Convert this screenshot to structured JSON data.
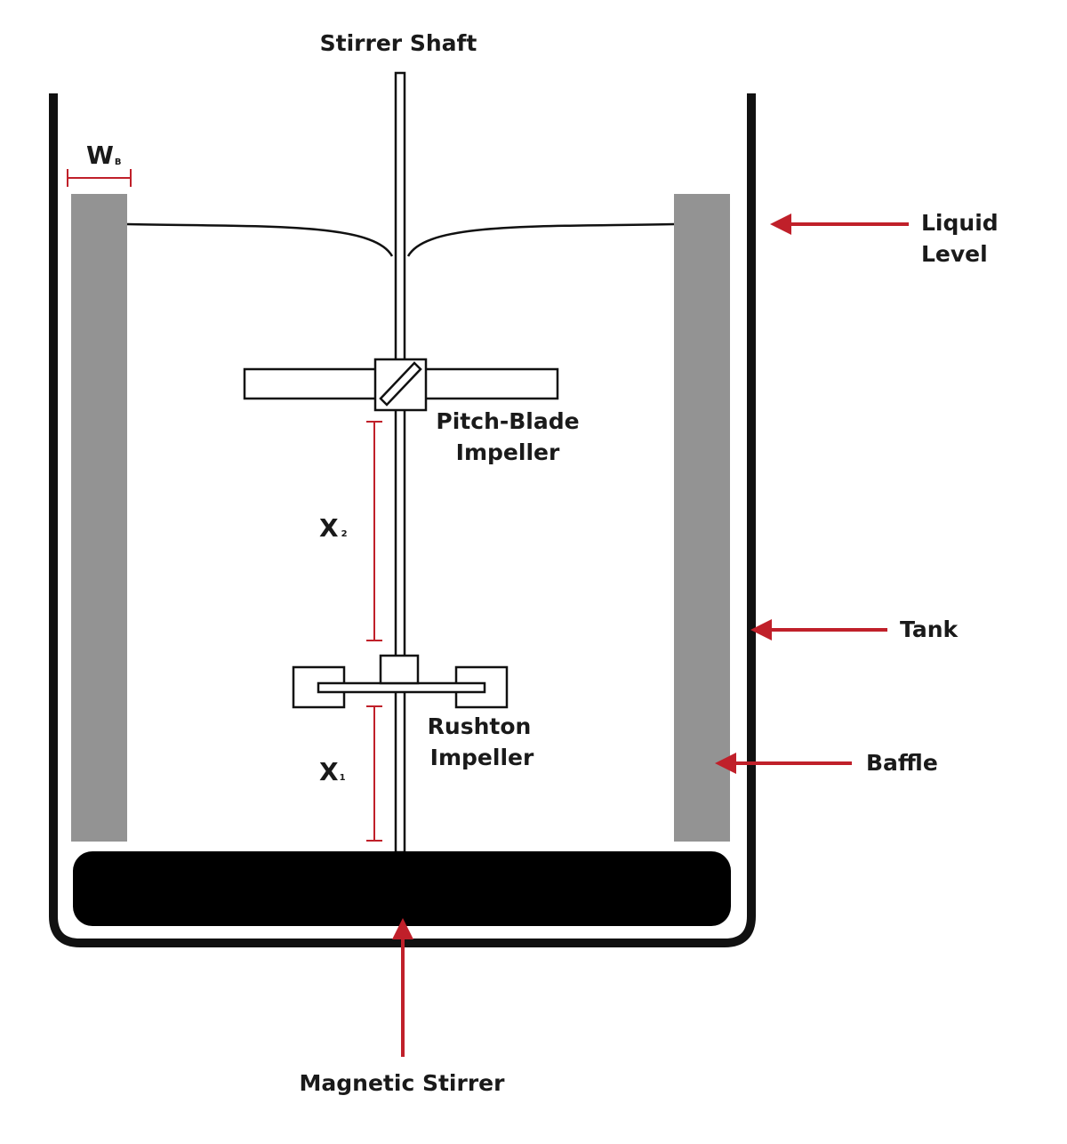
{
  "labels": {
    "stirrer_shaft": "Stirrer Shaft",
    "liquid_level_line1": "Liquid",
    "liquid_level_line2": "Level",
    "pitch_blade_line1": "Pitch-Blade",
    "pitch_blade_line2": "Impeller",
    "rushton_line1": "Rushton",
    "rushton_line2": "Impeller",
    "tank": "Tank",
    "baffle": "Baffle",
    "magnetic_stirrer": "Magnetic Stirrer"
  },
  "dimensions": {
    "baffle_width": {
      "symbol": "W",
      "subscript": "B"
    },
    "x2": {
      "symbol": "X",
      "subscript": "2"
    },
    "x1": {
      "symbol": "X",
      "subscript": "1"
    }
  },
  "colors": {
    "outline": "#111111",
    "baffle": "#939393",
    "accent_red": "#c0202a",
    "stirrer_bar": "#000000"
  }
}
